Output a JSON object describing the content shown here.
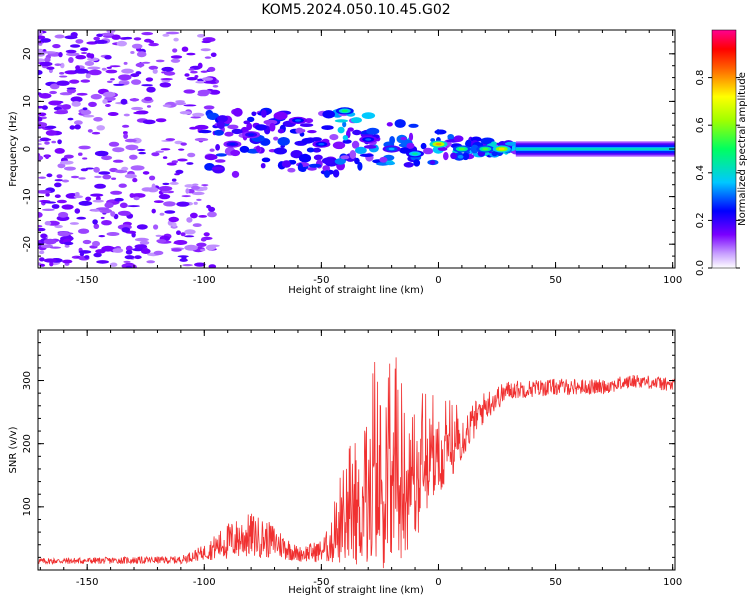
{
  "title": "KOM5.2024.050.10.45.G02",
  "chart_data": [
    {
      "type": "heatmap",
      "xlabel": "Height of straight line (km)",
      "ylabel": "Frequency (Hz)",
      "xlim": [
        -171,
        101
      ],
      "ylim": [
        -25,
        25
      ],
      "xticks": [
        -150,
        -100,
        -50,
        0,
        50,
        100
      ],
      "yticks": [
        -20,
        -10,
        0,
        10,
        20
      ],
      "colorbar": {
        "label": "Normalized spectral amplitude",
        "range": [
          0,
          1
        ],
        "ticks": [
          "0.0",
          "0.2",
          "0.4",
          "0.6",
          "0.8"
        ],
        "colormap": "rainbow (white-purple-blue-cyan-green-yellow-red-magenta)"
      },
      "features": {
        "noise_region_km": [
          -171,
          -95
        ],
        "noise_freq_span_hz": [
          -25,
          25
        ],
        "signal_band_center_hz": 0,
        "steady_band_start_km": 33,
        "steady_band_halfwidth_hz": 1.5,
        "steady_band_amplitude": 0.35,
        "transition_blobs": [
          {
            "x": -40,
            "y": 8,
            "a": 0.5
          },
          {
            "x": -60,
            "y": 6,
            "a": 0.3
          },
          {
            "x": -80,
            "y": 3,
            "a": 0.25
          },
          {
            "x": -88,
            "y": 1,
            "a": 0.25
          },
          {
            "x": -20,
            "y": 0,
            "a": 0.35
          },
          {
            "x": -10,
            "y": -1,
            "a": 0.45
          },
          {
            "x": 0,
            "y": 1,
            "a": 0.8
          },
          {
            "x": 10,
            "y": 0,
            "a": 0.55
          },
          {
            "x": 20,
            "y": 0,
            "a": 0.55
          },
          {
            "x": 27,
            "y": 0,
            "a": 0.75
          },
          {
            "x": -50,
            "y": 1,
            "a": 0.3
          },
          {
            "x": -30,
            "y": 2,
            "a": 0.3
          }
        ]
      }
    },
    {
      "type": "line",
      "xlabel": "Height of straight line (km)",
      "ylabel": "SNR (v/v)",
      "xlim": [
        -171,
        101
      ],
      "ylim": [
        0,
        380
      ],
      "xticks": [
        -150,
        -100,
        -50,
        0,
        50,
        100
      ],
      "yticks": [
        100,
        200,
        300
      ],
      "color": "#f03030",
      "envelope": [
        {
          "x": -171,
          "base": 14,
          "noise": 8
        },
        {
          "x": -110,
          "base": 16,
          "noise": 10
        },
        {
          "x": -100,
          "base": 28,
          "noise": 20
        },
        {
          "x": -90,
          "base": 45,
          "noise": 50
        },
        {
          "x": -80,
          "base": 55,
          "noise": 60
        },
        {
          "x": -70,
          "base": 45,
          "noise": 45
        },
        {
          "x": -60,
          "base": 25,
          "noise": 20
        },
        {
          "x": -50,
          "base": 30,
          "noise": 30
        },
        {
          "x": -40,
          "base": 60,
          "noise": 90
        },
        {
          "x": -30,
          "base": 110,
          "noise": 180
        },
        {
          "x": -20,
          "base": 120,
          "noise": 200
        },
        {
          "x": -10,
          "base": 130,
          "noise": 140
        },
        {
          "x": 0,
          "base": 170,
          "noise": 90
        },
        {
          "x": 10,
          "base": 210,
          "noise": 60
        },
        {
          "x": 20,
          "base": 260,
          "noise": 40
        },
        {
          "x": 30,
          "base": 285,
          "noise": 25
        },
        {
          "x": 50,
          "base": 290,
          "noise": 22
        },
        {
          "x": 70,
          "base": 290,
          "noise": 20
        },
        {
          "x": 85,
          "base": 300,
          "noise": 18
        },
        {
          "x": 101,
          "base": 292,
          "noise": 18
        }
      ]
    }
  ]
}
